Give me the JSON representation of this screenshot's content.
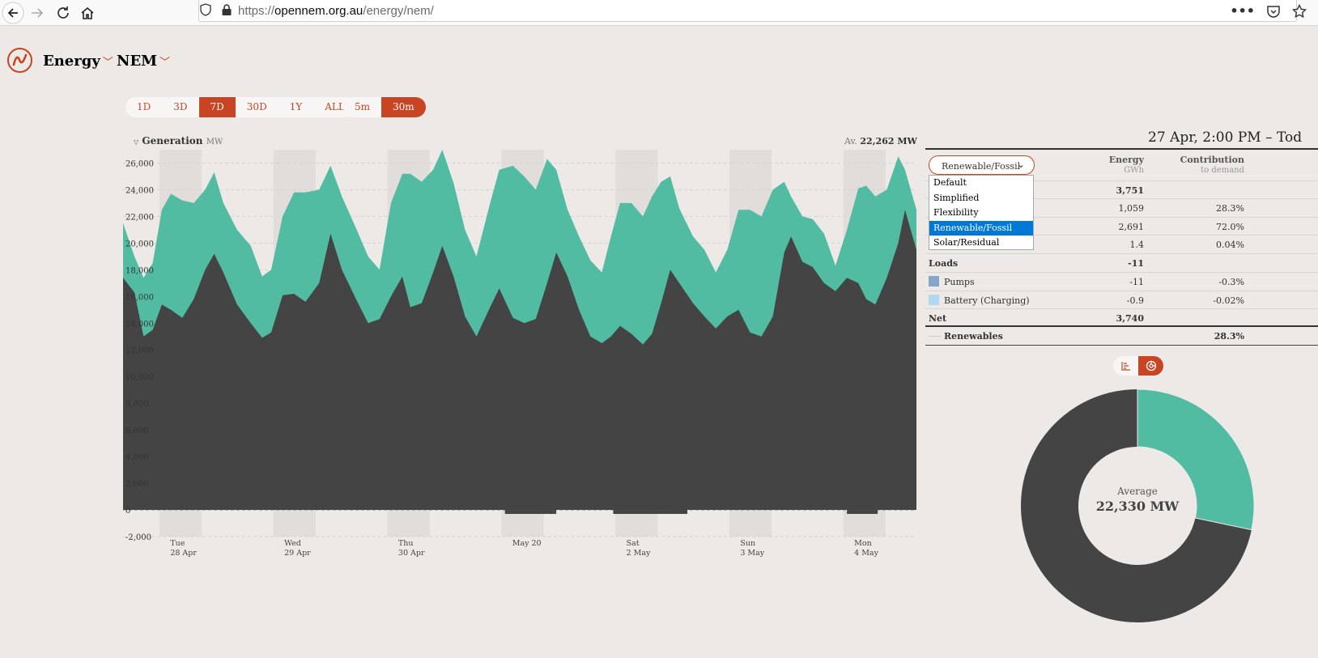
{
  "browser": {
    "url_prefix": "https://",
    "url_host": "opennem.org.au",
    "url_path": "/energy/nem/"
  },
  "header": {
    "section": "Energy",
    "region": "NEM"
  },
  "ranges": [
    "1D",
    "3D",
    "7D",
    "30D",
    "1Y",
    "ALL"
  ],
  "active_range": "7D",
  "intervals": [
    "5m",
    "30m"
  ],
  "active_interval": "30m",
  "chart": {
    "title": "Generation",
    "unit": "MW",
    "avg_prefix": "Av.",
    "avg_value": "22,262 MW"
  },
  "chart_data": {
    "type": "area",
    "title": "Generation",
    "ylabel": "MW",
    "ylim": [
      -2000,
      27000
    ],
    "yticks": [
      -2000,
      0,
      2000,
      4000,
      6000,
      8000,
      10000,
      12000,
      14000,
      16000,
      18000,
      20000,
      22000,
      24000,
      26000
    ],
    "ytick_labels": [
      "-2,000",
      "0",
      "2,000",
      "4,000",
      "6,000",
      "8,000",
      "10,000",
      "12,000",
      "14,000",
      "16,000",
      "18,000",
      "20,000",
      "22,000",
      "24,000",
      "26,000"
    ],
    "x_labels": [
      {
        "line1": "Tue",
        "line2": "28 Apr",
        "day": 0.4
      },
      {
        "line1": "Wed",
        "line2": "29 Apr",
        "day": 1.4
      },
      {
        "line1": "Thu",
        "line2": "30 Apr",
        "day": 2.4
      },
      {
        "line1": "May 20",
        "line2": "",
        "day": 3.4
      },
      {
        "line1": "Sat",
        "line2": "2 May",
        "day": 4.4
      },
      {
        "line1": "Sun",
        "line2": "3 May",
        "day": 5.4
      },
      {
        "line1": "Mon",
        "line2": "4 May",
        "day": 6.4
      }
    ],
    "x_range_days": [
      0,
      6.96
    ],
    "series": [
      {
        "name": "Fossil",
        "color": "#444444",
        "points": [
          [
            0.0,
            17400
          ],
          [
            0.1,
            16300
          ],
          [
            0.18,
            13000
          ],
          [
            0.26,
            13500
          ],
          [
            0.34,
            15400
          ],
          [
            0.42,
            15000
          ],
          [
            0.52,
            14400
          ],
          [
            0.62,
            15800
          ],
          [
            0.72,
            18000
          ],
          [
            0.8,
            19200
          ],
          [
            0.88,
            17800
          ],
          [
            1.0,
            15400
          ],
          [
            1.12,
            14000
          ],
          [
            1.22,
            12900
          ],
          [
            1.3,
            13300
          ],
          [
            1.4,
            16100
          ],
          [
            1.5,
            16200
          ],
          [
            1.6,
            15600
          ],
          [
            1.72,
            17000
          ],
          [
            1.82,
            20700
          ],
          [
            1.92,
            18000
          ],
          [
            2.05,
            15700
          ],
          [
            2.15,
            14000
          ],
          [
            2.25,
            14300
          ],
          [
            2.35,
            16000
          ],
          [
            2.45,
            17500
          ],
          [
            2.52,
            15200
          ],
          [
            2.62,
            15500
          ],
          [
            2.72,
            17800
          ],
          [
            2.8,
            19800
          ],
          [
            2.9,
            17500
          ],
          [
            3.0,
            14500
          ],
          [
            3.1,
            13000
          ],
          [
            3.22,
            15200
          ],
          [
            3.3,
            16600
          ],
          [
            3.42,
            14400
          ],
          [
            3.52,
            14000
          ],
          [
            3.62,
            14300
          ],
          [
            3.72,
            17000
          ],
          [
            3.8,
            19300
          ],
          [
            3.9,
            17500
          ],
          [
            4.0,
            15000
          ],
          [
            4.1,
            13000
          ],
          [
            4.2,
            12500
          ],
          [
            4.28,
            13000
          ],
          [
            4.36,
            13800
          ],
          [
            4.46,
            13200
          ],
          [
            4.56,
            12400
          ],
          [
            4.64,
            13200
          ],
          [
            4.72,
            15500
          ],
          [
            4.8,
            18000
          ],
          [
            4.88,
            17000
          ],
          [
            5.0,
            15500
          ],
          [
            5.1,
            14500
          ],
          [
            5.2,
            13600
          ],
          [
            5.3,
            14500
          ],
          [
            5.4,
            15000
          ],
          [
            5.5,
            13300
          ],
          [
            5.6,
            13000
          ],
          [
            5.7,
            14500
          ],
          [
            5.8,
            19300
          ],
          [
            5.86,
            20500
          ],
          [
            5.96,
            18600
          ],
          [
            6.05,
            18200
          ],
          [
            6.15,
            17000
          ],
          [
            6.25,
            16400
          ],
          [
            6.35,
            17400
          ],
          [
            6.45,
            17000
          ],
          [
            6.52,
            15800
          ],
          [
            6.6,
            15400
          ],
          [
            6.7,
            17400
          ],
          [
            6.8,
            20000
          ],
          [
            6.86,
            22500
          ],
          [
            6.96,
            19500
          ]
        ]
      },
      {
        "name": "Renewable",
        "color": "#52bca2",
        "points": [
          [
            0.0,
            21500
          ],
          [
            0.1,
            19000
          ],
          [
            0.18,
            17400
          ],
          [
            0.26,
            18500
          ],
          [
            0.34,
            22500
          ],
          [
            0.42,
            23700
          ],
          [
            0.52,
            23200
          ],
          [
            0.62,
            23000
          ],
          [
            0.72,
            24000
          ],
          [
            0.8,
            25300
          ],
          [
            0.88,
            23000
          ],
          [
            1.0,
            21000
          ],
          [
            1.12,
            19800
          ],
          [
            1.22,
            17500
          ],
          [
            1.3,
            18000
          ],
          [
            1.4,
            22000
          ],
          [
            1.5,
            23800
          ],
          [
            1.6,
            23800
          ],
          [
            1.72,
            24000
          ],
          [
            1.82,
            25800
          ],
          [
            1.92,
            23500
          ],
          [
            2.05,
            21000
          ],
          [
            2.15,
            19000
          ],
          [
            2.25,
            18000
          ],
          [
            2.35,
            23000
          ],
          [
            2.45,
            25200
          ],
          [
            2.52,
            25200
          ],
          [
            2.62,
            24600
          ],
          [
            2.72,
            25500
          ],
          [
            2.8,
            27000
          ],
          [
            2.9,
            24500
          ],
          [
            3.0,
            21000
          ],
          [
            3.1,
            19000
          ],
          [
            3.22,
            23000
          ],
          [
            3.3,
            25500
          ],
          [
            3.42,
            25800
          ],
          [
            3.52,
            25000
          ],
          [
            3.62,
            24000
          ],
          [
            3.72,
            26300
          ],
          [
            3.8,
            25500
          ],
          [
            3.9,
            22500
          ],
          [
            4.0,
            20500
          ],
          [
            4.1,
            18700
          ],
          [
            4.2,
            17800
          ],
          [
            4.28,
            20500
          ],
          [
            4.36,
            23000
          ],
          [
            4.46,
            23000
          ],
          [
            4.56,
            22000
          ],
          [
            4.64,
            23500
          ],
          [
            4.72,
            24600
          ],
          [
            4.8,
            25000
          ],
          [
            4.88,
            22600
          ],
          [
            5.0,
            20500
          ],
          [
            5.1,
            19500
          ],
          [
            5.2,
            17800
          ],
          [
            5.3,
            19500
          ],
          [
            5.4,
            22500
          ],
          [
            5.5,
            22500
          ],
          [
            5.6,
            22000
          ],
          [
            5.7,
            24000
          ],
          [
            5.8,
            24600
          ],
          [
            5.86,
            23500
          ],
          [
            5.96,
            22000
          ],
          [
            6.05,
            21800
          ],
          [
            6.15,
            20700
          ],
          [
            6.25,
            18300
          ],
          [
            6.35,
            21000
          ],
          [
            6.45,
            24100
          ],
          [
            6.52,
            24300
          ],
          [
            6.6,
            23500
          ],
          [
            6.7,
            24000
          ],
          [
            6.8,
            26500
          ],
          [
            6.86,
            25500
          ],
          [
            6.96,
            22500
          ]
        ]
      }
    ],
    "shaded_days": [
      0,
      1,
      2,
      3,
      4,
      5,
      6
    ]
  },
  "summary": {
    "date_range": "27 Apr, 2:00 PM – Tod",
    "col_energy": "Energy",
    "col_energy_unit": "GWh",
    "col_contrib": "Contribution",
    "col_contrib_unit": "to demand",
    "selector_value": "Renewable/Fossil",
    "options": [
      "Default",
      "Simplified",
      "Flexibility",
      "Renewable/Fossil",
      "Solar/Residual"
    ],
    "rows": [
      {
        "energy": "3,751",
        "contrib": ""
      },
      {
        "energy": "1,059",
        "contrib": "28.3%"
      },
      {
        "energy": "2,691",
        "contrib": "72.0%"
      },
      {
        "energy": "1.4",
        "contrib": "0.04%"
      }
    ],
    "loads_label": "Loads",
    "loads_energy": "-11",
    "pumps_label": "Pumps",
    "pumps_energy": "-11",
    "pumps_contrib": "-0.3%",
    "pumps_color": "#87a6c8",
    "battery_label": "Battery (Charging)",
    "battery_energy": "-0.9",
    "battery_contrib": "-0.02%",
    "battery_color": "#b3d7ef",
    "net_label": "Net",
    "net_energy": "3,740",
    "renewables_label": "Renewables",
    "renewables_contrib": "28.3%"
  },
  "donut": {
    "label": "Average",
    "value": "22,330 MW",
    "renewable_share": 0.283,
    "renewable_color": "#52bca2",
    "fossil_color": "#444444"
  }
}
